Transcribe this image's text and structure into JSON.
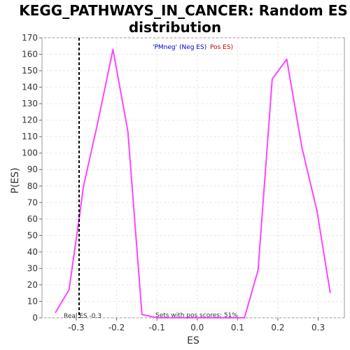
{
  "chart_data": {
    "type": "line",
    "title_line1": "KEGG_PATHWAYS_IN_CANCER: Random ES",
    "title_line2": "distribution",
    "xlabel": "ES",
    "ylabel": "P(ES)",
    "xlim": [
      -0.385,
      0.365
    ],
    "ylim": [
      0,
      170
    ],
    "x_ticks": [
      -0.3,
      -0.2,
      -0.1,
      0.0,
      0.1,
      0.2,
      0.3
    ],
    "x_tick_labels": [
      "-0.3",
      "-0.2",
      "-0.1",
      "0.0",
      "0.1",
      "0.2",
      "0.3"
    ],
    "y_ticks": [
      0,
      10,
      20,
      30,
      40,
      50,
      60,
      70,
      80,
      90,
      100,
      110,
      120,
      130,
      140,
      150,
      160,
      170
    ],
    "y_tick_labels": [
      "0",
      "10",
      "20",
      "30",
      "40",
      "50",
      "60",
      "70",
      "80",
      "90",
      "100",
      "110",
      "120",
      "130",
      "140",
      "150",
      "160",
      "170"
    ],
    "grid": true,
    "series": [
      {
        "color": "#ff44ff",
        "points": [
          [
            -0.352,
            3
          ],
          [
            -0.318,
            17
          ],
          [
            -0.293,
            60
          ],
          [
            -0.282,
            80
          ],
          [
            -0.248,
            117
          ],
          [
            -0.209,
            163
          ],
          [
            -0.172,
            113
          ],
          [
            -0.137,
            2
          ],
          [
            -0.1,
            0
          ],
          [
            -0.06,
            0
          ],
          [
            0.0,
            0
          ],
          [
            0.05,
            0
          ],
          [
            0.117,
            0
          ],
          [
            0.151,
            29
          ],
          [
            0.186,
            145
          ],
          [
            0.222,
            157
          ],
          [
            0.26,
            103
          ],
          [
            0.297,
            65
          ],
          [
            0.33,
            15
          ]
        ]
      }
    ],
    "real_es": -0.293,
    "real_es_label": "Real ES -0.3",
    "pos_scores_label": "Sets with pos scores: 51%",
    "legend_neg": "'PMneg' (Neg ES)",
    "legend_pos": "Pos ES)",
    "legend_neg_color": "#0000cc",
    "legend_pos_color": "#cc0000"
  }
}
